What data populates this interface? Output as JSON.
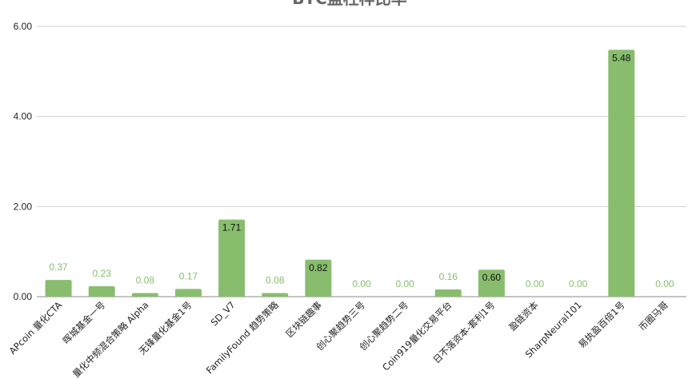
{
  "chart_data": {
    "type": "bar",
    "title": "BTC盈柱样比率",
    "xlabel": "",
    "ylabel": "",
    "ylim": [
      0,
      6
    ],
    "yticks": [
      "0.00",
      "2.00",
      "4.00",
      "6.00"
    ],
    "grid": true,
    "legend": "none",
    "categories": [
      "APcoin 量化CTA",
      "晖城基金一号",
      "量化中频混合策略 Alpha",
      "无锋量化基金1号",
      "SD_V7",
      "FamilyFound 趋势策略",
      "区块链趣事",
      "创心聚趋势三号",
      "创心聚趋势二号",
      "Coin919量化交易平台",
      "日不落资本-套利1号",
      "盈链资本",
      "SharpNeural101",
      "易执盈百倍1号",
      "币圈马哥"
    ],
    "values": [
      0.37,
      0.23,
      0.08,
      0.17,
      1.71,
      0.08,
      0.82,
      0.0,
      0.0,
      0.16,
      0.6,
      0.0,
      0.0,
      5.48,
      0.0
    ],
    "value_labels": [
      "0.37",
      "0.23",
      "0.08",
      "0.17",
      "1.71",
      "0.08",
      "0.82",
      "0.00",
      "0.00",
      "0.16",
      "0.60",
      "0.00",
      "0.00",
      "5.48",
      "0.00"
    ],
    "bar_color": "#88bd6e",
    "label_color_outside": "#88bd6e",
    "label_color_inside": "#111111"
  }
}
